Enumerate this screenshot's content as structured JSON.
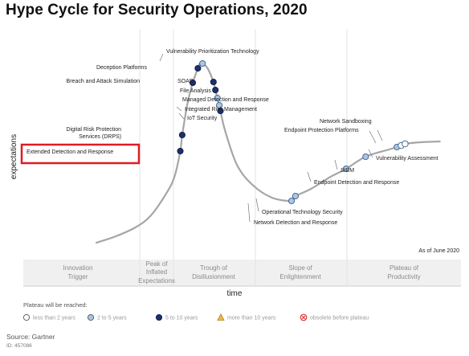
{
  "chart_data": {
    "type": "scatter",
    "title": "Hype Cycle for Security Operations, 2020",
    "xlabel": "time",
    "ylabel": "expectations",
    "as_of": "As of June 2020",
    "phases": [
      "Innovation Trigger",
      "Peak of Inflated Expectations",
      "Trough of Disillusionment",
      "Slope of Enlightenment",
      "Plateau of Productivity"
    ],
    "legend_title": "Plateau will be reached:",
    "legend": [
      {
        "key": "lt2",
        "label": "less than 2 years",
        "color": "#ffffff"
      },
      {
        "key": "2to5",
        "label": "2 to 5 years",
        "color": "#a8c6e6"
      },
      {
        "key": "5to10",
        "label": "5 to 10 years",
        "color": "#1c2f6e"
      },
      {
        "key": "gt10",
        "label": "more than 10 years",
        "color": "#f0b84a"
      },
      {
        "key": "obsolete",
        "label": "obsolete before plateau",
        "color": "#d33b3b"
      }
    ],
    "technologies": [
      {
        "name": "Extended Detection and Response",
        "t": 0.215,
        "plateau": "5to10",
        "highlight": true
      },
      {
        "name": "Digital Risk Protection Services (DRPS)",
        "t": 0.22,
        "plateau": "5to10"
      },
      {
        "name": "Breach and Attack Simulation",
        "t": 0.247,
        "plateau": "5to10"
      },
      {
        "name": "Deception Platforms",
        "t": 0.26,
        "plateau": "5to10"
      },
      {
        "name": "Vulnerability Prioritization Technology",
        "t": 0.272,
        "plateau": "2to5"
      },
      {
        "name": "SOAR",
        "t": 0.3,
        "plateau": "5to10"
      },
      {
        "name": "File Analysis",
        "t": 0.305,
        "plateau": "5to10"
      },
      {
        "name": "Managed Detection and Response",
        "t": 0.31,
        "plateau": "2to5"
      },
      {
        "name": "Integrated Risk Management",
        "t": 0.315,
        "plateau": "2to5"
      },
      {
        "name": "IoT Security",
        "t": 0.318,
        "plateau": "5to10"
      },
      {
        "name": "Network Detection and Response",
        "t": 0.5,
        "plateau": "2to5"
      },
      {
        "name": "Operational Technology Security",
        "t": 0.51,
        "plateau": "2to5"
      },
      {
        "name": "Endpoint Detection and Response",
        "t": 0.64,
        "plateau": "2to5"
      },
      {
        "name": "SIEM",
        "t": 0.69,
        "plateau": "2to5"
      },
      {
        "name": "Vulnerability Assessment",
        "t": 0.77,
        "plateau": "2to5"
      },
      {
        "name": "Endpoint Protection Platforms",
        "t": 0.781,
        "plateau": "lt2"
      },
      {
        "name": "Network Sandboxing",
        "t": 0.791,
        "plateau": "lt2"
      }
    ]
  },
  "source": "Source: Gartner",
  "source_id": "ID: 457086"
}
